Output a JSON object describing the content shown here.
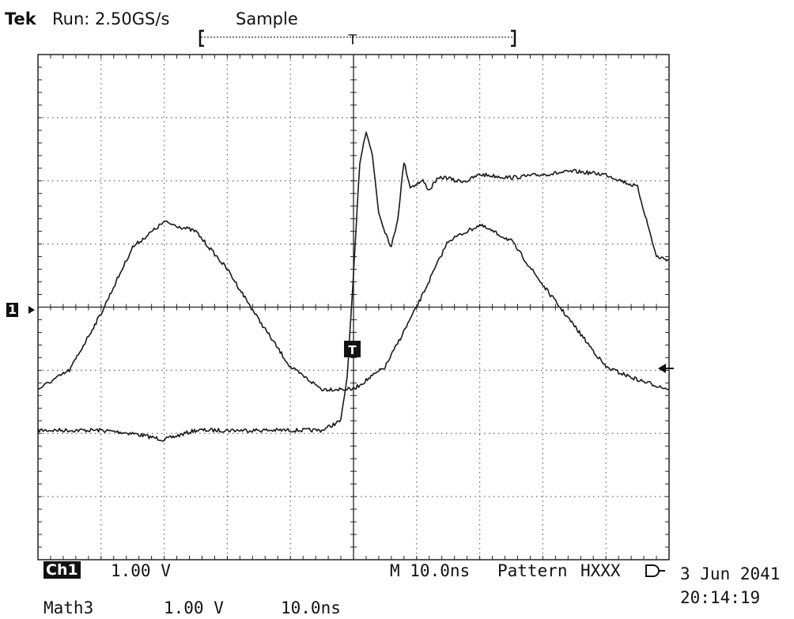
{
  "header": {
    "brand": "Tek",
    "run_status": "Run: 2.50GS/s",
    "acq_mode": "Sample"
  },
  "markers": {
    "trigger_label": "T",
    "ch1_ground_label": "1"
  },
  "footer": {
    "ch1_label": "Ch1",
    "ch1_scale": "1.00 V",
    "horizontal": "M 10.0ns",
    "trigger_type": "Pattern",
    "pattern": "HXXX",
    "date": "3 Jun 2041",
    "time": "20:14:19",
    "math_label": "Math3",
    "math_scale": "1.00 V",
    "math_timebase": "10.0ns"
  },
  "chart_data": {
    "type": "line",
    "title": "",
    "xlabel": "",
    "ylabel": "",
    "grid": true,
    "x_divisions": 10,
    "y_divisions": 8,
    "xlim": [
      -50,
      50
    ],
    "ylim": [
      -4,
      4
    ],
    "x_unit": "ns",
    "y_unit": "V",
    "series": [
      {
        "x": [
          -50,
          -45,
          -40,
          -35,
          -30,
          -25,
          -20,
          -15,
          -10,
          -5,
          -2,
          -1,
          0,
          1,
          2,
          3,
          4,
          5,
          6,
          7,
          8,
          9,
          10,
          11,
          12,
          13,
          14,
          15,
          16,
          18,
          20,
          25,
          30,
          35,
          40,
          45,
          48,
          50
        ],
        "y": [
          -1.95,
          -1.95,
          -1.95,
          -2.0,
          -2.1,
          -1.95,
          -1.95,
          -1.95,
          -1.95,
          -1.95,
          -1.8,
          -1.1,
          0.5,
          2.3,
          2.8,
          2.4,
          1.5,
          1.2,
          0.95,
          1.4,
          2.3,
          1.9,
          1.95,
          2.0,
          1.85,
          2.0,
          2.05,
          2.05,
          2.0,
          2.0,
          2.1,
          2.05,
          2.1,
          2.15,
          2.1,
          1.9,
          0.8,
          0.75
        ]
      },
      {
        "x": [
          -50,
          -45,
          -40,
          -35,
          -30,
          -25,
          -20,
          -15,
          -10,
          -5,
          0,
          5,
          10,
          15,
          20,
          25,
          30,
          35,
          40,
          45,
          50
        ],
        "y": [
          -1.3,
          -1.0,
          -0.1,
          0.95,
          1.35,
          1.2,
          0.6,
          -0.2,
          -0.95,
          -1.3,
          -1.3,
          -0.95,
          0.0,
          1.05,
          1.3,
          1.05,
          0.35,
          -0.3,
          -0.95,
          -1.15,
          -1.3
        ]
      }
    ]
  }
}
